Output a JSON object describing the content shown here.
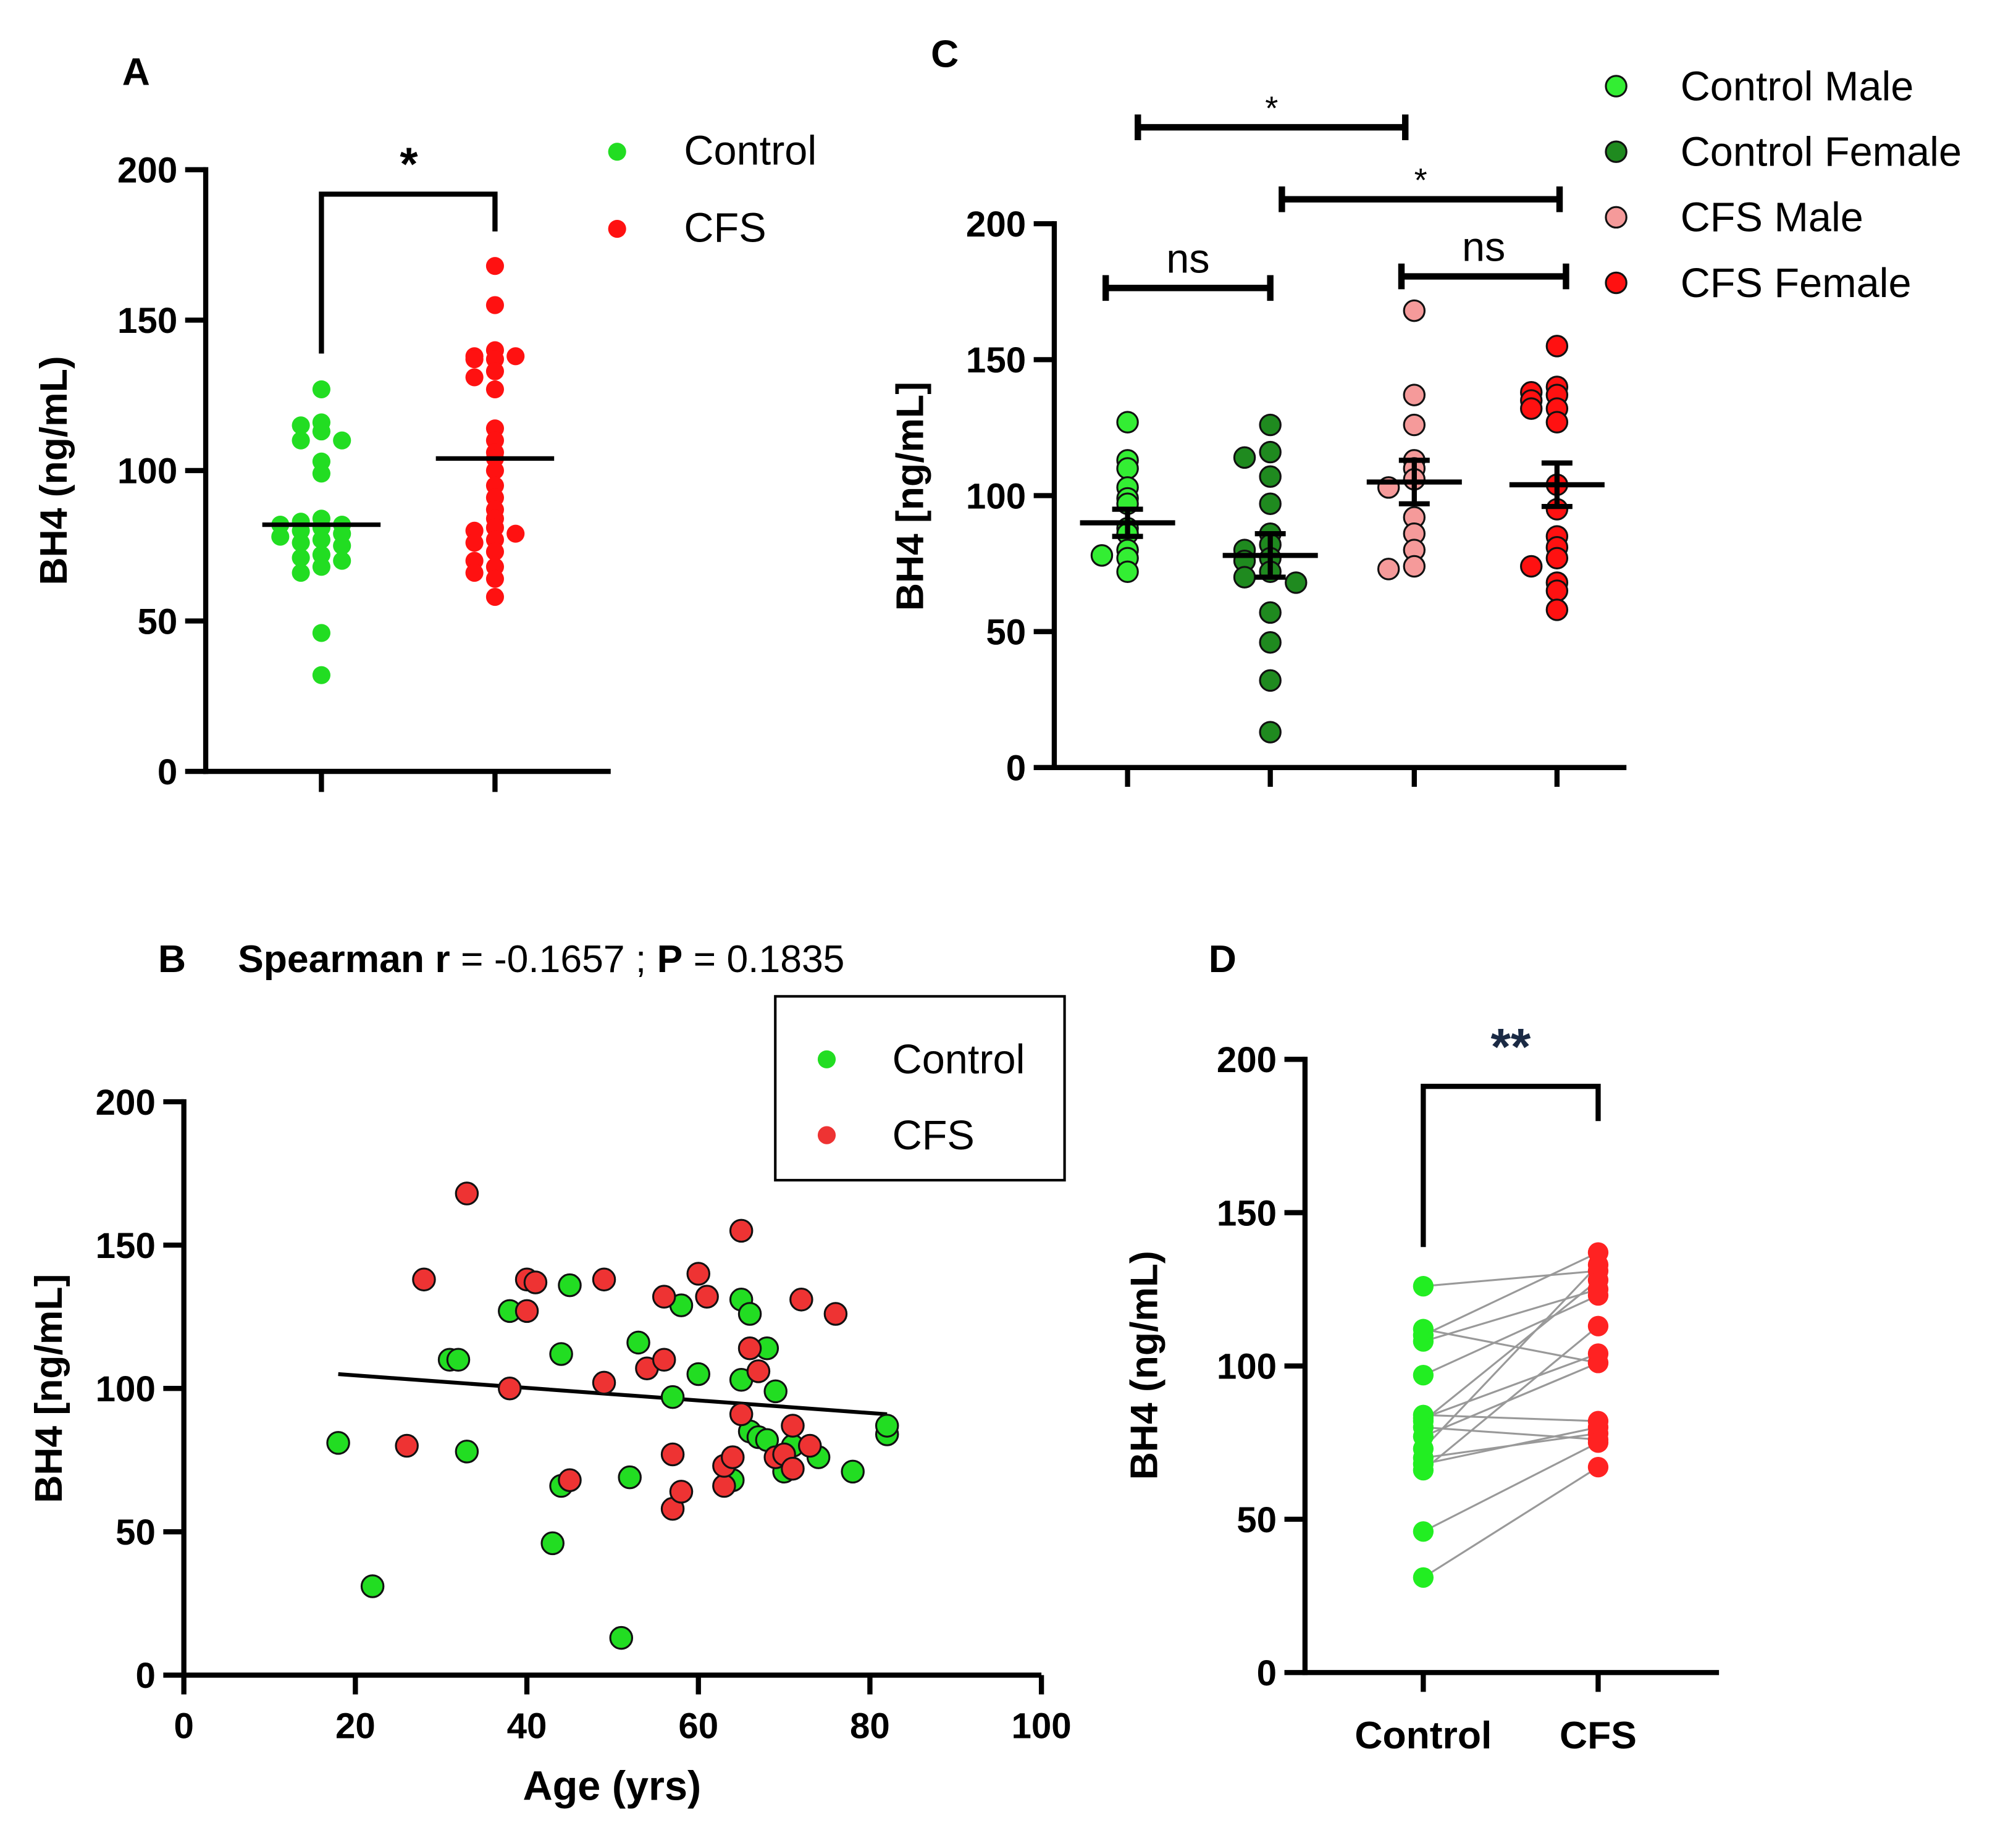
{
  "chart_data": [
    {
      "panel": "A",
      "type": "scatter",
      "ylabel": "BH4 (ng/mL)",
      "ylim": [
        0,
        200
      ],
      "yticks": [
        "0",
        "50",
        "100",
        "150",
        "200"
      ],
      "categories": [
        "Control",
        "CFS"
      ],
      "legend": [
        "Control",
        "CFS"
      ],
      "legend_position": "top-right",
      "significance": "*",
      "colors": {
        "Control": "#22dd22",
        "CFS": "#ff1111"
      },
      "series": [
        {
          "name": "Control",
          "mean": 82,
          "values": [
            127,
            116,
            115,
            113,
            110,
            110,
            103,
            99,
            84,
            83,
            82,
            82,
            81,
            80,
            79,
            78,
            77,
            76,
            75,
            72,
            71,
            70,
            68,
            66,
            46,
            32
          ]
        },
        {
          "name": "CFS",
          "mean": 104,
          "values": [
            168,
            155,
            140,
            138,
            138,
            137,
            137,
            133,
            131,
            127,
            114,
            110,
            106,
            104,
            100,
            95,
            91,
            87,
            84,
            81,
            80,
            79,
            77,
            76,
            73,
            70,
            68,
            66,
            64,
            58
          ]
        }
      ]
    },
    {
      "panel": "C",
      "type": "scatter",
      "ylabel": "BH4 [ng/mL]",
      "ylim": [
        0,
        200
      ],
      "yticks": [
        "0",
        "50",
        "100",
        "150",
        "200"
      ],
      "legend": [
        "Control Male",
        "Control Female",
        "CFS Male",
        "CFS Female"
      ],
      "legend_position": "top-right",
      "comparisons": [
        {
          "from": 0,
          "to": 2,
          "label": "*"
        },
        {
          "from": 1,
          "to": 3,
          "label": "*"
        },
        {
          "from": 0,
          "to": 1,
          "label": "ns"
        },
        {
          "from": 2,
          "to": 3,
          "label": "ns"
        }
      ],
      "series": [
        {
          "name": "Control Male",
          "color": "#33ee33",
          "mean": 90,
          "sem": 5,
          "values": [
            127,
            113,
            110,
            103,
            99,
            97,
            88,
            86,
            80,
            78,
            77,
            72
          ]
        },
        {
          "name": "Control Female",
          "color": "#1f8a1f",
          "mean": 78,
          "sem": 8,
          "values": [
            126,
            116,
            114,
            107,
            97,
            86,
            82,
            80,
            77,
            76,
            72,
            70,
            68,
            57,
            46,
            32,
            13
          ]
        },
        {
          "name": "CFS Male",
          "color": "#f59a9a",
          "mean": 105,
          "sem": 8,
          "values": [
            168,
            137,
            126,
            113,
            110,
            106,
            103,
            92,
            86,
            80,
            74,
            73
          ]
        },
        {
          "name": "CFS Female",
          "color": "#ff1111",
          "mean": 104,
          "sem": 8,
          "values": [
            155,
            140,
            138,
            137,
            135,
            132,
            132,
            127,
            104,
            95,
            85,
            81,
            77,
            74,
            68,
            65,
            58
          ]
        }
      ]
    },
    {
      "panel": "B",
      "type": "scatter",
      "title_parts": [
        "Spearman r",
        " = -0.1657 ; ",
        "P",
        " = 0.1835"
      ],
      "xlabel": "Age (yrs)",
      "ylabel": "BH4 [ng/mL]",
      "xlim": [
        0,
        100
      ],
      "ylim": [
        0,
        200
      ],
      "xticks": [
        "0",
        "20",
        "40",
        "60",
        "80",
        "100"
      ],
      "yticks": [
        "0",
        "50",
        "100",
        "150",
        "200"
      ],
      "legend": [
        "Control",
        "CFS"
      ],
      "legend_position": "top-right",
      "regression": {
        "x": [
          18,
          82
        ],
        "y": [
          105,
          91
        ]
      },
      "series": [
        {
          "name": "Control",
          "color": "#22dd22",
          "points": [
            [
              18,
              81
            ],
            [
              22,
              31
            ],
            [
              31,
              110
            ],
            [
              32,
              110
            ],
            [
              33,
              78
            ],
            [
              38,
              127
            ],
            [
              43,
              46
            ],
            [
              44,
              66
            ],
            [
              44,
              112
            ],
            [
              45,
              136
            ],
            [
              51,
              13
            ],
            [
              52,
              69
            ],
            [
              53,
              116
            ],
            [
              57,
              97
            ],
            [
              58,
              129
            ],
            [
              60,
              105
            ],
            [
              64,
              68
            ],
            [
              65,
              131
            ],
            [
              65,
              103
            ],
            [
              66,
              126
            ],
            [
              66,
              85
            ],
            [
              67,
              83
            ],
            [
              68,
              114
            ],
            [
              68,
              82
            ],
            [
              69,
              99
            ],
            [
              70,
              71
            ],
            [
              71,
              80
            ],
            [
              74,
              76
            ],
            [
              78,
              71
            ],
            [
              82,
              84
            ],
            [
              82,
              87
            ]
          ]
        },
        {
          "name": "CFS",
          "color": "#ee3333",
          "points": [
            [
              26,
              80
            ],
            [
              28,
              138
            ],
            [
              33,
              168
            ],
            [
              38,
              100
            ],
            [
              40,
              138
            ],
            [
              40,
              127
            ],
            [
              41,
              137
            ],
            [
              45,
              68
            ],
            [
              49,
              102
            ],
            [
              49,
              138
            ],
            [
              54,
              107
            ],
            [
              56,
              132
            ],
            [
              56,
              110
            ],
            [
              57,
              77
            ],
            [
              57,
              58
            ],
            [
              58,
              64
            ],
            [
              60,
              140
            ],
            [
              61,
              132
            ],
            [
              63,
              66
            ],
            [
              63,
              73
            ],
            [
              64,
              76
            ],
            [
              65,
              155
            ],
            [
              65,
              91
            ],
            [
              66,
              114
            ],
            [
              67,
              106
            ],
            [
              69,
              76
            ],
            [
              70,
              77
            ],
            [
              71,
              72
            ],
            [
              71,
              87
            ],
            [
              72,
              131
            ],
            [
              73,
              80
            ],
            [
              76,
              126
            ]
          ]
        }
      ]
    },
    {
      "panel": "D",
      "type": "line",
      "ylabel": "BH4 (ng/mL)",
      "ylim": [
        0,
        200
      ],
      "yticks": [
        "0",
        "50",
        "100",
        "150",
        "200"
      ],
      "categories": [
        "Control",
        "CFS"
      ],
      "significance": "**",
      "colors": {
        "Control": "#22ee22",
        "CFS": "#ff2222",
        "line": "#999999"
      },
      "pairs": [
        [
          126,
          131
        ],
        [
          112,
          101
        ],
        [
          110,
          137
        ],
        [
          108,
          125
        ],
        [
          97,
          123
        ],
        [
          84,
          82
        ],
        [
          83,
          104
        ],
        [
          82,
          128
        ],
        [
          80,
          76
        ],
        [
          77,
          101
        ],
        [
          73,
          133
        ],
        [
          70,
          78
        ],
        [
          68,
          80
        ],
        [
          66,
          113
        ],
        [
          46,
          75
        ],
        [
          31,
          67
        ]
      ]
    }
  ]
}
